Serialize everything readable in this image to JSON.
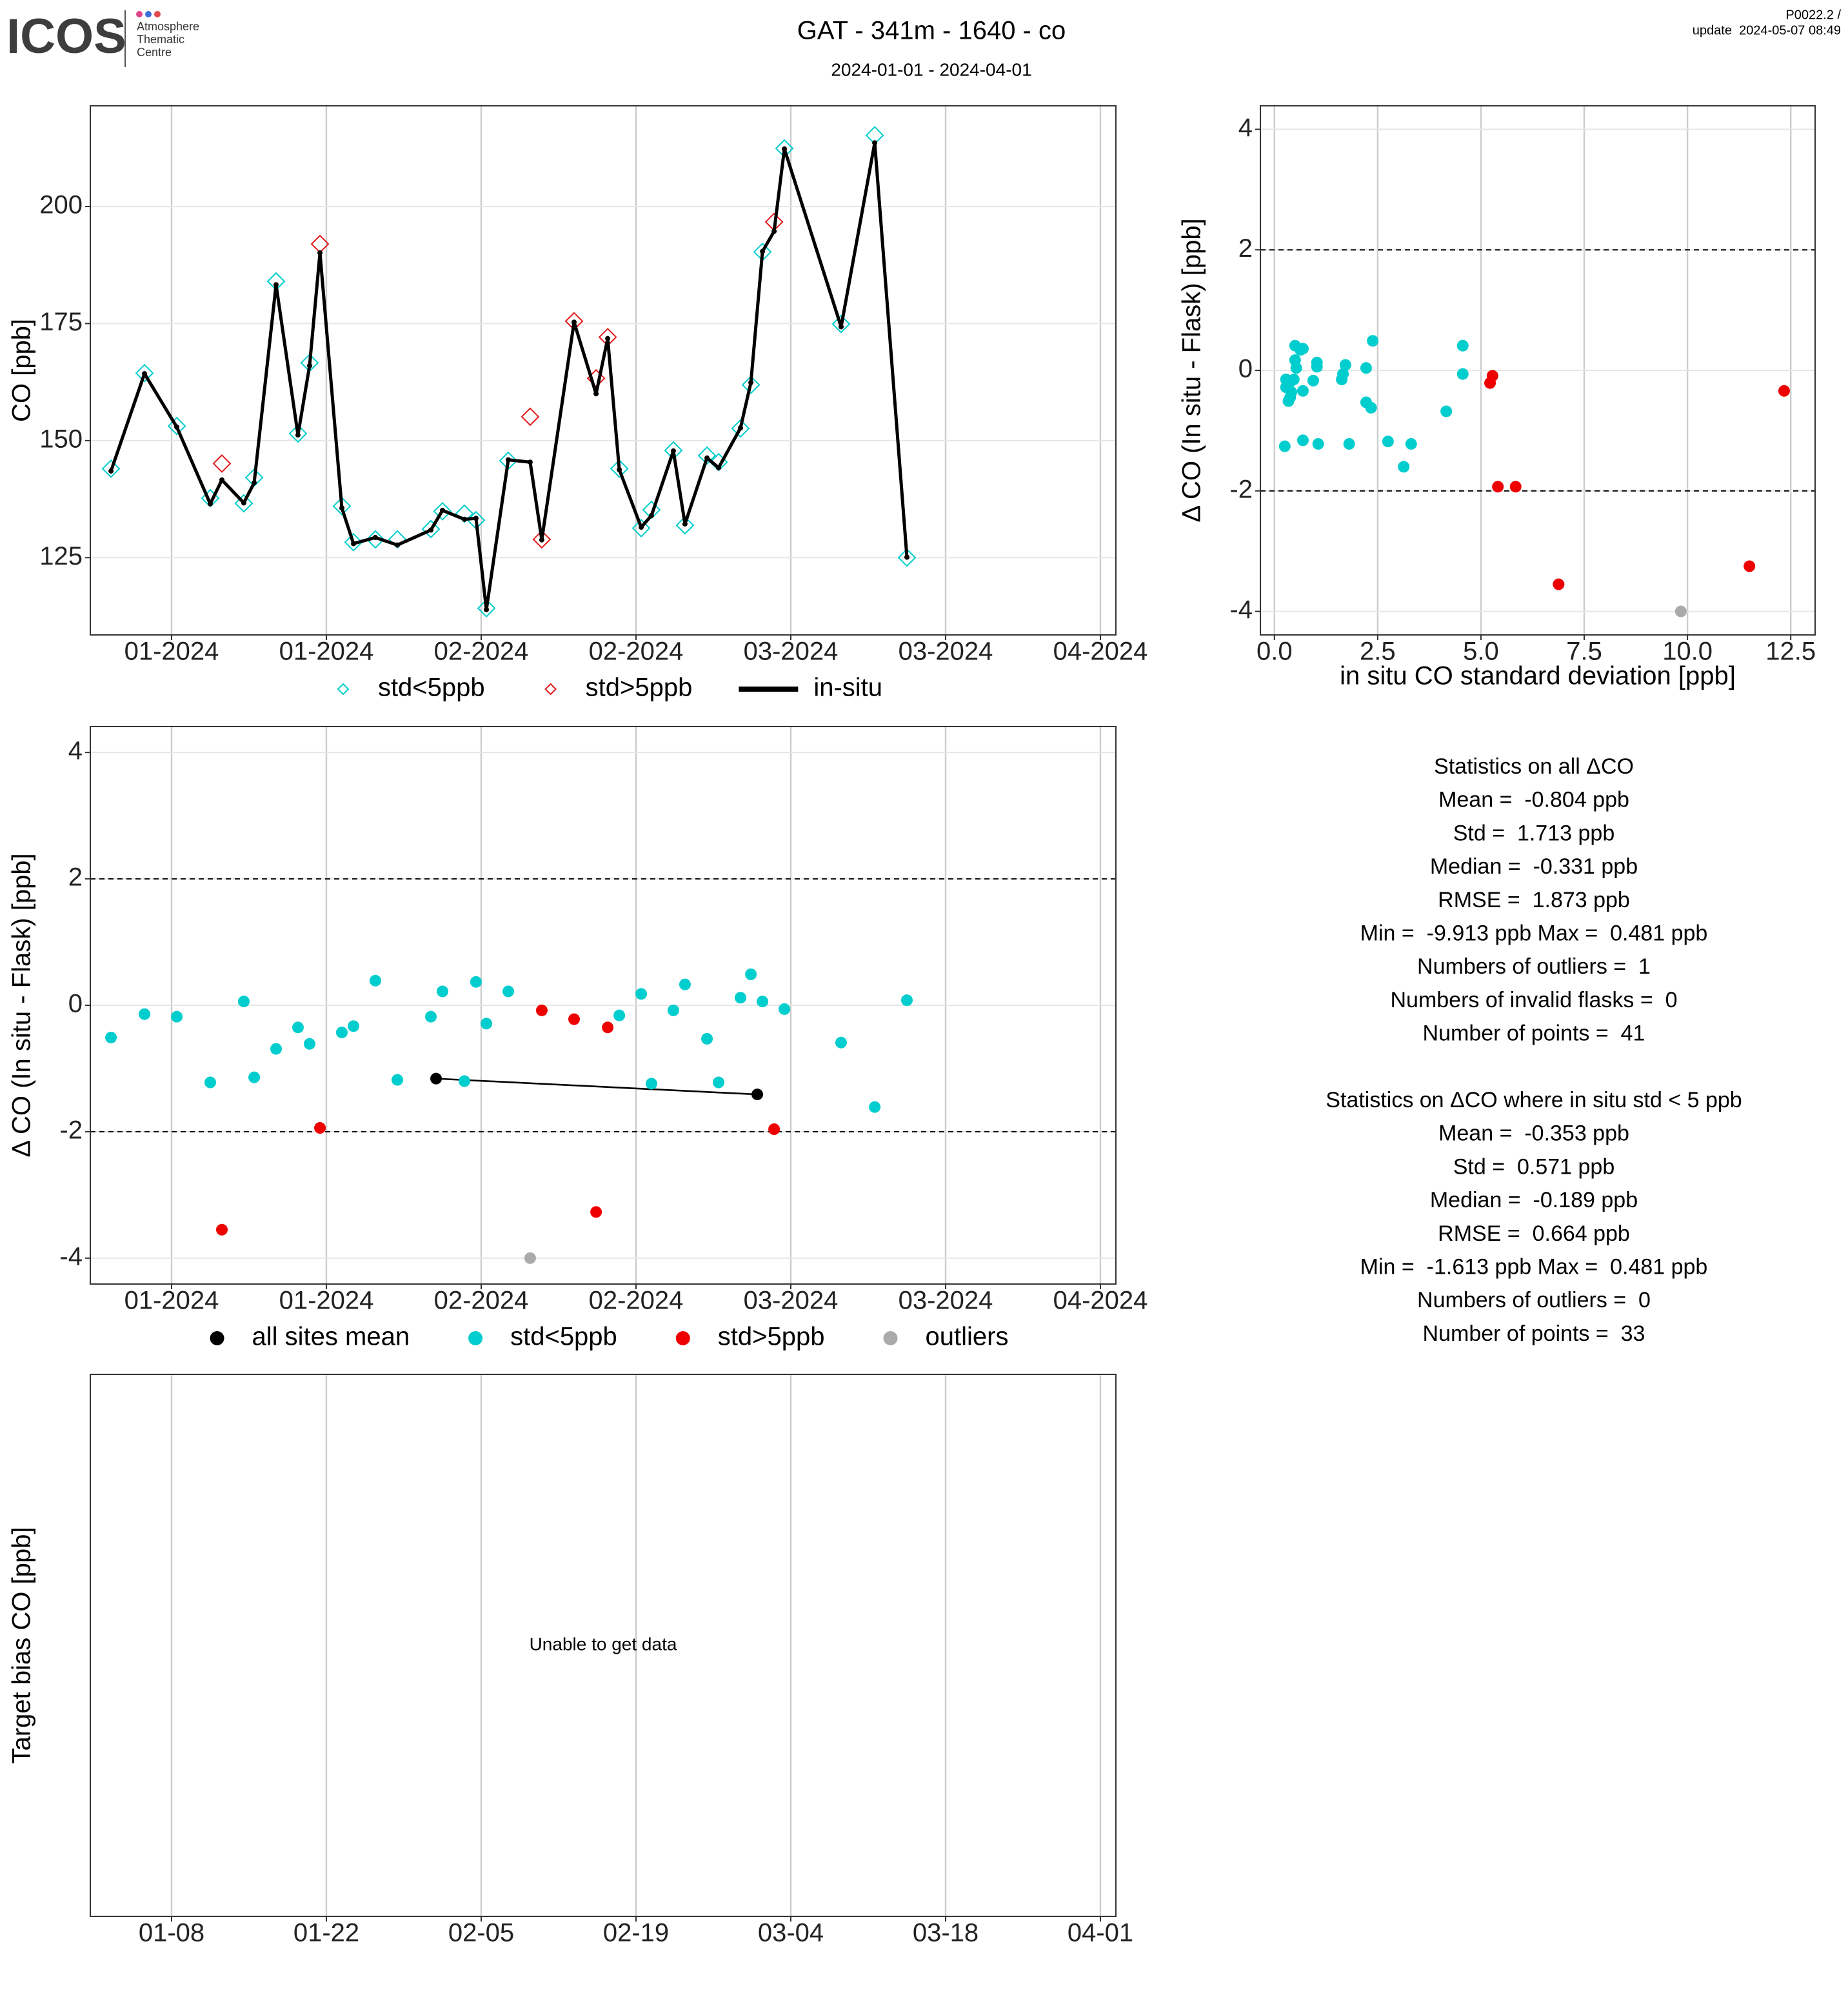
{
  "header": {
    "logo": "ICOS",
    "logo_caption": [
      "Atmosphere",
      "Thematic",
      "Centre"
    ],
    "title": "GAT - 341m - 1640 - co",
    "subtitle": "2024-01-01 - 2024-04-01",
    "version": "P0022.2 /",
    "update": "update  2024-05-07 08:49"
  },
  "chart_data": [
    {
      "type": "line",
      "ylabel": "CO [ppb]",
      "grid": true,
      "legend": "bottom",
      "x": [
        1.52,
        4.55,
        7.47,
        10.5,
        11.55,
        13.53,
        14.47,
        16.45,
        18.43,
        19.48,
        20.42,
        22.4,
        23.45,
        25.43,
        27.42,
        30.45,
        31.5,
        33.48,
        34.53,
        35.47,
        37.45,
        39.43,
        40.48,
        43.4,
        45.39,
        46.44,
        47.49,
        49.47,
        50.4,
        52.38,
        53.43,
        55.42,
        56.47,
        58.45,
        59.39,
        60.44,
        61.49,
        62.42,
        67.55,
        70.59,
        73.5
      ],
      "xlim": [
        -0.35,
        92.4
      ],
      "xticks": [
        {
          "value": 7,
          "label": "01-2024"
        },
        {
          "value": 21,
          "label": "01-2024"
        },
        {
          "value": 35,
          "label": "02-2024"
        },
        {
          "value": 49,
          "label": "02-2024"
        },
        {
          "value": 63,
          "label": "03-2024"
        },
        {
          "value": 77,
          "label": "03-2024"
        },
        {
          "value": 91,
          "label": "04-2024"
        }
      ],
      "ylim": [
        108.5,
        221.5
      ],
      "yticks": [
        125,
        150,
        175,
        200
      ],
      "series": [
        {
          "name": "std<5ppb",
          "color": "#00cdcd",
          "marker": "diamond",
          "values": [
            144.0,
            164.4,
            153.1,
            137.7,
            null,
            136.6,
            142.1,
            184.0,
            151.5,
            166.6,
            null,
            136.0,
            128.3,
            128.9,
            128.9,
            131.1,
            134.9,
            134.4,
            133.0,
            114.2,
            145.7,
            null,
            null,
            null,
            null,
            null,
            144.0,
            131.3,
            135.2,
            147.9,
            131.9,
            146.8,
            145.4,
            152.6,
            161.9,
            190.3,
            null,
            212.4,
            174.9,
            215.2,
            125.0
          ]
        },
        {
          "name": "std>5ppb",
          "color": "#e31a1c",
          "marker": "diamond",
          "values": [
            null,
            null,
            null,
            null,
            145.1,
            null,
            null,
            null,
            null,
            null,
            192.0,
            null,
            null,
            null,
            null,
            null,
            null,
            null,
            null,
            null,
            null,
            155.1,
            128.9,
            175.5,
            163.3,
            172.1,
            null,
            null,
            null,
            null,
            null,
            null,
            null,
            null,
            null,
            null,
            196.7,
            null,
            null,
            null,
            null
          ]
        },
        {
          "name": "in-situ",
          "color": "#000000",
          "marker": "line",
          "values": [
            143.5,
            164.3,
            152.9,
            136.5,
            141.6,
            136.7,
            141.0,
            183.3,
            151.2,
            166.0,
            190.1,
            135.6,
            128.0,
            129.3,
            127.7,
            130.9,
            135.1,
            133.2,
            133.4,
            113.9,
            145.9,
            145.4,
            128.8,
            175.3,
            160.0,
            171.8,
            143.8,
            131.5,
            134.0,
            147.8,
            132.2,
            146.3,
            144.2,
            152.7,
            162.4,
            190.4,
            194.7,
            212.3,
            174.3,
            213.6,
            125.1
          ]
        }
      ]
    },
    {
      "type": "scatter",
      "ylabel": "Δ CO (In situ - Flask) [ppb]",
      "grid": true,
      "legend": "bottom",
      "hlines": [
        2,
        -2
      ],
      "x": [
        1.52,
        4.55,
        7.47,
        10.5,
        11.55,
        13.53,
        14.47,
        16.45,
        18.43,
        19.48,
        20.42,
        22.4,
        23.45,
        25.43,
        27.42,
        30.45,
        31.5,
        33.48,
        34.53,
        35.47,
        37.45,
        39.43,
        40.48,
        43.4,
        45.39,
        46.44,
        47.49,
        49.47,
        50.4,
        52.38,
        53.43,
        55.42,
        56.47,
        58.45,
        59.39,
        60.44,
        61.49,
        62.42,
        67.55,
        70.59,
        73.5
      ],
      "xlim": [
        -0.35,
        92.4
      ],
      "xticks": [
        {
          "value": 7,
          "label": "01-2024"
        },
        {
          "value": 21,
          "label": "01-2024"
        },
        {
          "value": 35,
          "label": "02-2024"
        },
        {
          "value": 49,
          "label": "02-2024"
        },
        {
          "value": 63,
          "label": "03-2024"
        },
        {
          "value": 77,
          "label": "03-2024"
        },
        {
          "value": 91,
          "label": "04-2024"
        }
      ],
      "ylim": [
        -4.41,
        4.41
      ],
      "yticks": [
        -4,
        -2,
        0,
        2,
        4
      ],
      "series": [
        {
          "name": "all sites mean",
          "color": "#000000",
          "marker": "dotline",
          "x": [
            30.92,
            59.97
          ],
          "values": [
            -1.16,
            -1.41
          ]
        },
        {
          "name": "std<5ppb",
          "color": "#00cdcd",
          "marker": "dot",
          "values": [
            -0.51,
            -0.14,
            -0.18,
            -1.22,
            null,
            0.06,
            -1.14,
            -0.69,
            -0.35,
            -0.61,
            null,
            -0.43,
            -0.33,
            0.39,
            -1.18,
            -0.18,
            0.22,
            -1.2,
            0.37,
            -0.29,
            0.22,
            null,
            null,
            null,
            null,
            null,
            -0.16,
            0.18,
            -1.24,
            -0.08,
            0.33,
            -0.53,
            -1.22,
            0.12,
            0.49,
            0.06,
            null,
            -0.06,
            -0.59,
            -1.61,
            0.08
          ]
        },
        {
          "name": "std>5ppb",
          "color": "#ee0000",
          "marker": "dot",
          "values": [
            null,
            null,
            null,
            null,
            -3.55,
            null,
            null,
            null,
            null,
            null,
            -1.94,
            null,
            null,
            null,
            null,
            null,
            null,
            null,
            null,
            null,
            null,
            null,
            -0.08,
            -0.22,
            -3.27,
            -0.35,
            null,
            null,
            null,
            null,
            null,
            null,
            null,
            null,
            null,
            null,
            -1.96,
            null,
            null,
            null,
            null
          ]
        },
        {
          "name": "outliers",
          "color": "#aaaaaa",
          "marker": "dot",
          "values": [
            null,
            null,
            null,
            null,
            null,
            null,
            null,
            null,
            null,
            null,
            null,
            null,
            null,
            null,
            null,
            null,
            null,
            null,
            null,
            null,
            null,
            -4.0,
            null,
            null,
            null,
            null,
            null,
            null,
            null,
            null,
            null,
            null,
            null,
            null,
            null,
            null,
            null,
            null,
            null,
            null,
            null
          ]
        }
      ]
    },
    {
      "type": "scatter",
      "xlabel": "in situ CO standard deviation [ppb]",
      "ylabel": "Δ CO (In situ - Flask) [ppb]",
      "grid": true,
      "hlines": [
        2,
        -2
      ],
      "xlim": [
        -0.34,
        13.09
      ],
      "xticks": [
        {
          "value": 0,
          "label": "0.0"
        },
        2.5,
        {
          "value": 5,
          "label": "5.0"
        },
        7.5,
        {
          "value": 10,
          "label": "10.0"
        },
        12.5
      ],
      "ylim": [
        -4.39,
        4.39
      ],
      "yticks": [
        -4,
        -2,
        0,
        2,
        4
      ],
      "series": [
        {
          "color": "#00cdcd",
          "marker": "dot",
          "x": [
            0.25,
            0.28,
            0.28,
            0.34,
            0.38,
            0.38,
            0.41,
            0.47,
            0.5,
            0.5,
            0.53,
            0.63,
            0.69,
            0.69,
            0.69,
            0.94,
            1.03,
            1.03,
            1.06,
            1.63,
            1.66,
            1.72,
            1.81,
            2.22,
            2.22,
            2.34,
            2.38,
            2.75,
            3.13,
            3.31,
            4.16,
            4.56,
            4.56
          ],
          "values": [
            -1.26,
            -0.28,
            -0.15,
            -0.51,
            -0.19,
            -0.45,
            -0.36,
            -0.15,
            0.17,
            0.41,
            0.04,
            0.34,
            -1.16,
            0.36,
            -0.34,
            -0.17,
            0.06,
            0.13,
            -1.22,
            -0.15,
            -0.06,
            0.09,
            -1.22,
            0.04,
            -0.53,
            -0.62,
            0.49,
            -1.18,
            -1.6,
            -1.22,
            -0.68,
            0.41,
            -0.06
          ]
        },
        {
          "color": "#ee0000",
          "marker": "dot",
          "x": [
            5.22,
            5.28,
            5.41,
            5.84,
            6.88,
            11.5,
            12.34
          ],
          "values": [
            -0.21,
            -0.09,
            -1.93,
            -1.93,
            -3.55,
            -3.25,
            -0.34
          ]
        },
        {
          "color": "#aaaaaa",
          "marker": "dot",
          "x": [
            9.84
          ],
          "values": [
            -4.0
          ]
        }
      ]
    },
    {
      "type": "empty",
      "ylabel": "Target bias CO [ppb]",
      "grid": true,
      "message": "Unable to get data",
      "xlim": [
        -0.35,
        92.4
      ],
      "xticks": [
        {
          "value": 7,
          "label": "01-08"
        },
        {
          "value": 21,
          "label": "01-22"
        },
        {
          "value": 35,
          "label": "02-05"
        },
        {
          "value": 49,
          "label": "02-19"
        },
        {
          "value": 63,
          "label": "03-04"
        },
        {
          "value": 77,
          "label": "03-18"
        },
        {
          "value": 91,
          "label": "04-01"
        }
      ],
      "series": []
    }
  ],
  "statistics": [
    {
      "title": "Statistics on all ΔCO",
      "lines": [
        "Mean =  -0.804 ppb",
        "Std =  1.713 ppb",
        "Median =  -0.331 ppb",
        "RMSE =  1.873 ppb",
        "Min =  -9.913 ppb Max =  0.481 ppb",
        "Numbers of outliers =  1",
        "Numbers of invalid flasks =  0",
        "Number of points =  41"
      ]
    },
    {
      "title": "Statistics on ΔCO where in situ std < 5 ppb",
      "lines": [
        "Mean =  -0.353 ppb",
        "Std =  0.571 ppb",
        "Median =  -0.189 ppb",
        "RMSE =  0.664 ppb",
        "Min =  -1.613 ppb Max =  0.481 ppb",
        "Numbers of outliers =  0",
        "Number of points =  33"
      ]
    }
  ]
}
